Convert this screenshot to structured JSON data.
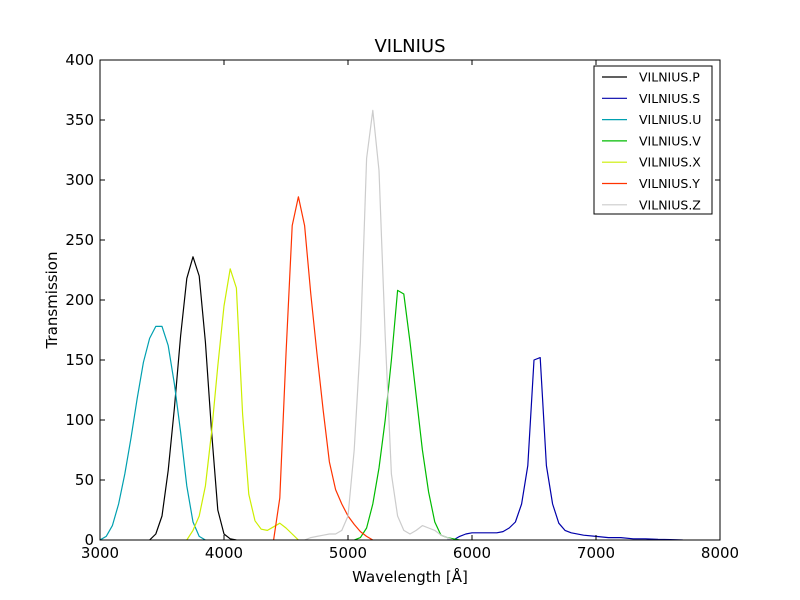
{
  "chart_data": {
    "type": "line",
    "title": "VILNIUS",
    "xlabel": "Wavelength [Å]",
    "ylabel": "Transmission",
    "xlim": [
      3000,
      8000
    ],
    "ylim": [
      0,
      400
    ],
    "xticks": [
      3000,
      4000,
      5000,
      6000,
      7000,
      8000
    ],
    "yticks": [
      0,
      50,
      100,
      150,
      200,
      250,
      300,
      350,
      400
    ],
    "xtick_labels": [
      "3000",
      "4000",
      "5000",
      "6000",
      "7000",
      "8000"
    ],
    "ytick_labels": [
      "0",
      "50",
      "100",
      "150",
      "200",
      "250",
      "300",
      "350",
      "400"
    ],
    "grid": false,
    "legend_position": "top-right",
    "series": [
      {
        "name": "VILNIUS.P",
        "color": "#000000",
        "x": [
          3400,
          3450,
          3500,
          3550,
          3600,
          3650,
          3700,
          3750,
          3800,
          3850,
          3900,
          3950,
          4000,
          4050,
          4100
        ],
        "y": [
          0,
          5,
          20,
          58,
          110,
          170,
          218,
          236,
          220,
          165,
          90,
          25,
          5,
          1,
          0
        ]
      },
      {
        "name": "VILNIUS.S",
        "color": "#0000aa",
        "x": [
          5800,
          5850,
          5900,
          5950,
          6000,
          6050,
          6100,
          6150,
          6200,
          6250,
          6300,
          6350,
          6400,
          6450,
          6500,
          6550,
          6600,
          6650,
          6700,
          6750,
          6800,
          6900,
          7000,
          7100,
          7200,
          7300,
          7400,
          7500,
          7600,
          7700
        ],
        "y": [
          0,
          0,
          3,
          5,
          6,
          6,
          6,
          6,
          6,
          7,
          10,
          15,
          30,
          62,
          150,
          152,
          62,
          30,
          14,
          8,
          6,
          4,
          3,
          2,
          2,
          1,
          1,
          0.5,
          0.3,
          0
        ],
        "x_label_note": ""
      },
      {
        "name": "VILNIUS.U",
        "color": "#00a0b0",
        "x": [
          3000,
          3050,
          3100,
          3150,
          3200,
          3250,
          3300,
          3350,
          3400,
          3450,
          3500,
          3550,
          3600,
          3650,
          3700,
          3750,
          3800,
          3850
        ],
        "y": [
          0,
          3,
          12,
          30,
          55,
          85,
          118,
          148,
          168,
          178,
          178,
          162,
          130,
          90,
          45,
          15,
          3,
          0
        ]
      },
      {
        "name": "VILNIUS.V",
        "color": "#00bb00",
        "x": [
          5050,
          5100,
          5150,
          5200,
          5250,
          5300,
          5350,
          5400,
          5450,
          5500,
          5550,
          5600,
          5650,
          5700,
          5750,
          5800,
          5850,
          5900
        ],
        "y": [
          0,
          2,
          10,
          30,
          60,
          100,
          150,
          208,
          205,
          165,
          120,
          75,
          40,
          15,
          4,
          2,
          1,
          0
        ]
      },
      {
        "name": "VILNIUS.X",
        "color": "#ccee00",
        "x": [
          3700,
          3750,
          3800,
          3850,
          3900,
          3950,
          4000,
          4050,
          4100,
          4150,
          4200,
          4250,
          4300,
          4350,
          4400,
          4450,
          4500,
          4550,
          4600
        ],
        "y": [
          0,
          8,
          20,
          45,
          90,
          145,
          195,
          226,
          210,
          105,
          38,
          16,
          9,
          8,
          11,
          14,
          10,
          5,
          0
        ]
      },
      {
        "name": "VILNIUS.Y",
        "color": "#ff3300",
        "x": [
          4400,
          4450,
          4500,
          4550,
          4600,
          4650,
          4700,
          4750,
          4800,
          4850,
          4900,
          4950,
          5000,
          5050,
          5100,
          5150,
          5200
        ],
        "y": [
          0,
          35,
          155,
          262,
          286,
          262,
          205,
          155,
          108,
          65,
          42,
          30,
          20,
          13,
          7,
          3,
          0
        ]
      },
      {
        "name": "VILNIUS.Z",
        "color": "#cccccc",
        "x": [
          4650,
          4700,
          4750,
          4800,
          4850,
          4900,
          4950,
          5000,
          5050,
          5100,
          5150,
          5200,
          5250,
          5300,
          5350,
          5400,
          5450,
          5500,
          5550,
          5600,
          5650,
          5700,
          5750,
          5800,
          5850
        ],
        "y": [
          0,
          2,
          3,
          4,
          5,
          5,
          8,
          20,
          75,
          165,
          318,
          358,
          308,
          170,
          55,
          20,
          8,
          5,
          8,
          12,
          10,
          8,
          4,
          2,
          0
        ]
      }
    ]
  }
}
